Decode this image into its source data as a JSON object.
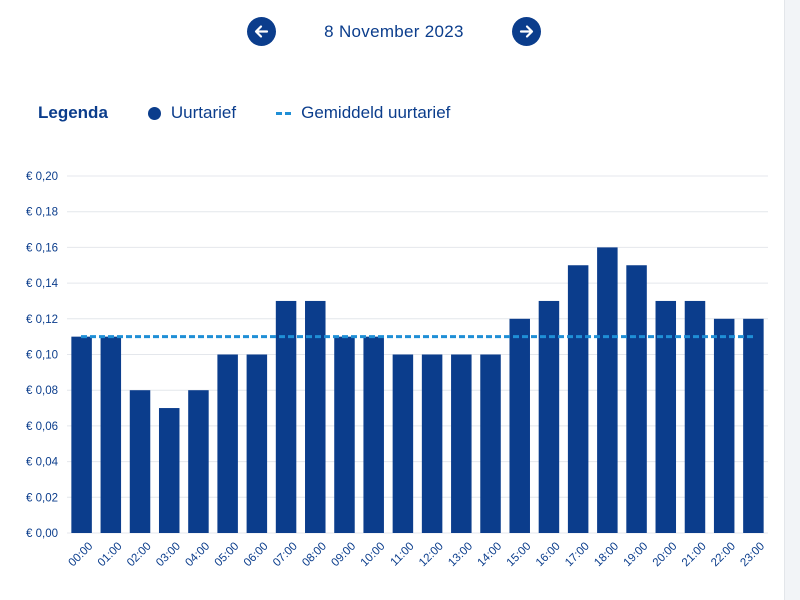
{
  "navigation": {
    "date": "8 November 2023",
    "prev_icon": "arrow-left-icon",
    "next_icon": "arrow-right-icon"
  },
  "legend": {
    "title": "Legenda",
    "items": [
      {
        "label": "Uurtarief",
        "symbol": "dot"
      },
      {
        "label": "Gemiddeld uurtarief",
        "symbol": "dashed-line"
      }
    ]
  },
  "colors": {
    "primary": "#0b3d8c",
    "average_line": "#1f8fd6",
    "grid": "#e4e7ec"
  },
  "chart_data": {
    "type": "bar",
    "categories": [
      "00:00",
      "01:00",
      "02:00",
      "03:00",
      "04:00",
      "05:00",
      "06:00",
      "07:00",
      "08:00",
      "09:00",
      "10:00",
      "11:00",
      "12:00",
      "13:00",
      "14:00",
      "15:00",
      "16:00",
      "17:00",
      "18:00",
      "19:00",
      "20:00",
      "21:00",
      "22:00",
      "23:00"
    ],
    "series": [
      {
        "name": "Uurtarief",
        "values": [
          0.11,
          0.11,
          0.08,
          0.07,
          0.08,
          0.1,
          0.1,
          0.13,
          0.13,
          0.11,
          0.11,
          0.1,
          0.1,
          0.1,
          0.1,
          0.12,
          0.13,
          0.15,
          0.16,
          0.15,
          0.13,
          0.13,
          0.12,
          0.12
        ]
      },
      {
        "name": "Gemiddeld uurtarief",
        "type": "line",
        "value": 0.11
      }
    ],
    "ylim": [
      0,
      0.2
    ],
    "yticks": [
      0,
      0.02,
      0.04,
      0.06,
      0.08,
      0.1,
      0.12,
      0.14,
      0.16,
      0.18,
      0.2
    ],
    "ytick_labels": [
      "€ 0,00",
      "€ 0,02",
      "€ 0,04",
      "€ 0,06",
      "€ 0,08",
      "€ 0,10",
      "€ 0,12",
      "€ 0,14",
      "€ 0,16",
      "€ 0,18",
      "€ 0,20"
    ],
    "grid": true,
    "legend_position": "top-left",
    "title": "",
    "xlabel": "",
    "ylabel": ""
  }
}
